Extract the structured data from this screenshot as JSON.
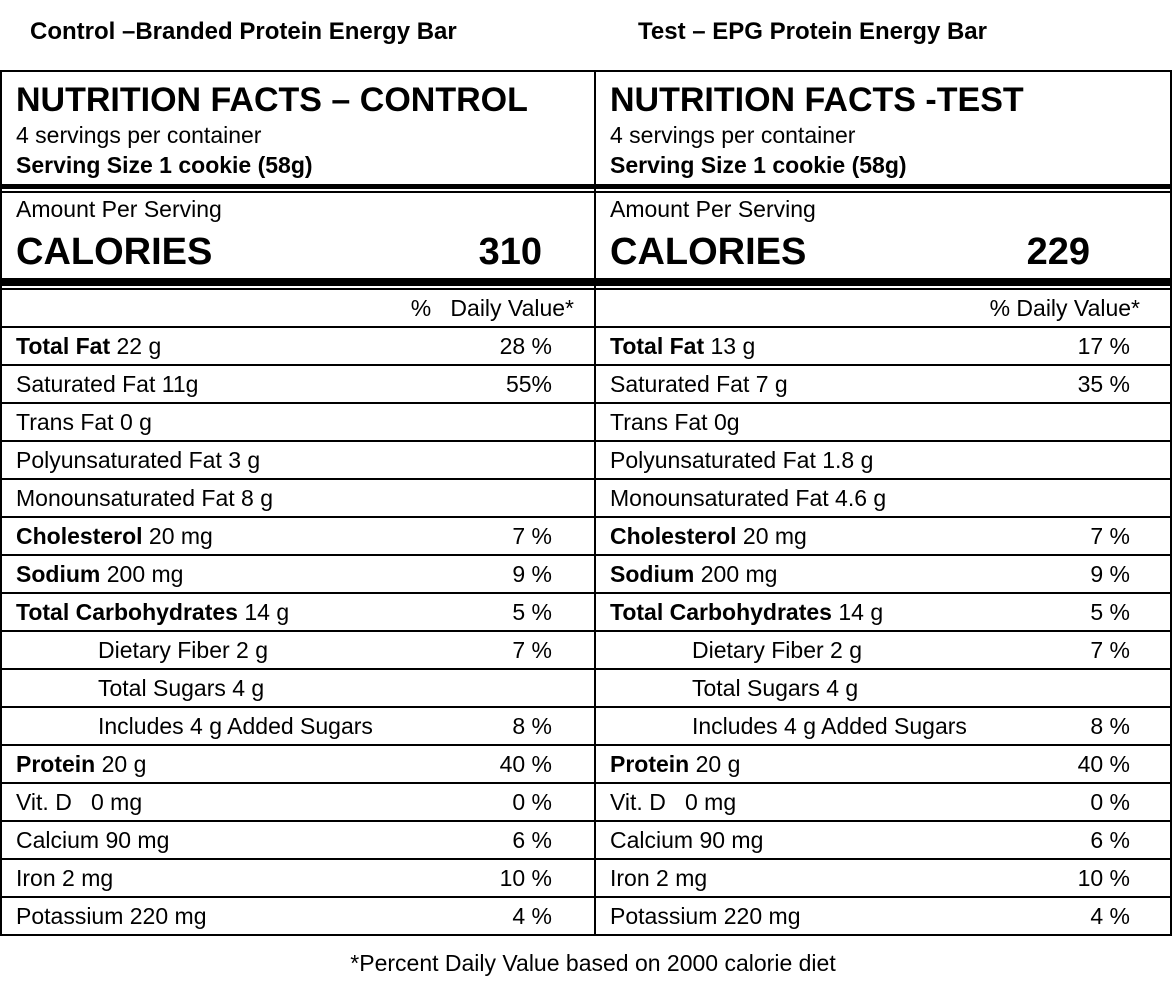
{
  "captions": {
    "left": "Control –Branded Protein Energy Bar",
    "right": "Test – EPG Protein Energy Bar"
  },
  "panels": [
    {
      "title": "NUTRITION FACTS – CONTROL",
      "servings": "4 servings per container",
      "serving_size": "Serving Size 1 cookie (58g)",
      "amount_per_serving": "Amount Per Serving",
      "calories_label": "CALORIES",
      "calories_value": "310",
      "dv_header": "%   Daily Value*",
      "rows": [
        {
          "bold": "Total Fat",
          "text": " 22 g",
          "pct": "28 %"
        },
        {
          "bold": "",
          "text": "Saturated Fat 11g",
          "pct": "55%"
        },
        {
          "bold": "",
          "text": "Trans Fat 0 g",
          "pct": ""
        },
        {
          "bold": "",
          "text": "Polyunsaturated Fat 3 g",
          "pct": ""
        },
        {
          "bold": "",
          "text": "Monounsaturated Fat 8 g",
          "pct": ""
        },
        {
          "bold": "Cholesterol",
          "text": " 20 mg",
          "pct": "7 %"
        },
        {
          "bold": "Sodium",
          "text": " 200 mg",
          "pct": "9 %"
        },
        {
          "bold": "Total Carbohydrates",
          "text": " 14 g",
          "pct": "5 %"
        },
        {
          "bold": "",
          "text": "Dietary Fiber 2 g",
          "pct": "7 %",
          "indent": true
        },
        {
          "bold": "",
          "text": "Total Sugars 4 g",
          "pct": "",
          "indent": true
        },
        {
          "bold": "",
          "text": "Includes 4 g Added Sugars",
          "pct": "8 %",
          "indent": true
        },
        {
          "bold": "Protein",
          "text": " 20 g",
          "pct": "40 %"
        },
        {
          "bold": "",
          "text": "Vit. D   0 mg",
          "pct": "0 %"
        },
        {
          "bold": "",
          "text": "Calcium 90 mg",
          "pct": "6 %"
        },
        {
          "bold": "",
          "text": "Iron 2 mg",
          "pct": "10 %"
        },
        {
          "bold": "",
          "text": "Potassium 220 mg",
          "pct": "4 %"
        }
      ]
    },
    {
      "title": "NUTRITION FACTS -TEST",
      "servings": "4 servings per container",
      "serving_size": "Serving Size 1 cookie (58g)",
      "amount_per_serving": "Amount Per Serving",
      "calories_label": "CALORIES",
      "calories_value": "229",
      "dv_header": "% Daily Value*",
      "rows": [
        {
          "bold": "Total Fat",
          "text": " 13 g",
          "pct": "17 %"
        },
        {
          "bold": "",
          "text": "Saturated Fat 7 g",
          "pct": "35 %"
        },
        {
          "bold": "",
          "text": "Trans Fat 0g",
          "pct": ""
        },
        {
          "bold": "",
          "text": "Polyunsaturated Fat 1.8 g",
          "pct": ""
        },
        {
          "bold": "",
          "text": "Monounsaturated Fat 4.6 g",
          "pct": ""
        },
        {
          "bold": "Cholesterol",
          "text": " 20 mg",
          "pct": "7 %"
        },
        {
          "bold": "Sodium",
          "text": " 200 mg",
          "pct": "9 %"
        },
        {
          "bold": "Total Carbohydrates",
          "text": " 14 g",
          "pct": "5 %"
        },
        {
          "bold": "",
          "text": "Dietary Fiber 2 g",
          "pct": "7 %",
          "indent": true
        },
        {
          "bold": "",
          "text": "Total Sugars 4 g",
          "pct": "",
          "indent": true
        },
        {
          "bold": "",
          "text": "Includes 4 g Added Sugars",
          "pct": "8 %",
          "indent": true
        },
        {
          "bold": "Protein",
          "text": " 20 g",
          "pct": "40 %"
        },
        {
          "bold": "",
          "text": "Vit. D   0 mg",
          "pct": "0 %"
        },
        {
          "bold": "",
          "text": "Calcium 90 mg",
          "pct": "6 %"
        },
        {
          "bold": "",
          "text": "Iron 2 mg",
          "pct": "10 %"
        },
        {
          "bold": "",
          "text": "Potassium 220 mg",
          "pct": "4 %"
        }
      ]
    }
  ],
  "footnote": "*Percent Daily Value based on 2000 calorie diet"
}
